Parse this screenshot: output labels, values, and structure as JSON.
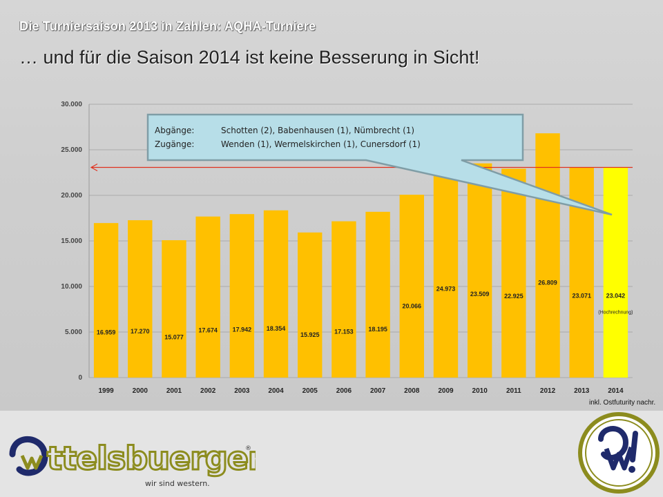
{
  "header": {
    "kicker": "Die Turniersaison 2013 in Zahlen: AQHA-Turniere",
    "headline": "… und für die Saison 2014 ist keine Besserung in Sicht!"
  },
  "callout": {
    "rows": [
      {
        "label": "Abgänge:",
        "text": "Schotten (2), Babenhausen (1), Nümbrecht (1)"
      },
      {
        "label": "Zugänge:",
        "text": "Wenden (1), Wermelskirchen (1), Cunersdorf (1)"
      }
    ]
  },
  "footnote": "inkl. Ostfuturity nachr.",
  "brand": {
    "wordmark": "ttelsbuerger",
    "tagline": "wir sind western.",
    "registered": "®"
  },
  "colors": {
    "bar": "#FFC000",
    "bar_highlight": "#FFFF00",
    "reference_line": "#E0301E",
    "callout_fill": "#B7DEE8",
    "callout_border": "#7F9DA6",
    "logo_blue": "#1F2A6B",
    "logo_olive": "#8C8C1E"
  },
  "chart_data": {
    "type": "bar",
    "categories": [
      "1999",
      "2000",
      "2001",
      "2002",
      "2003",
      "2004",
      "2005",
      "2006",
      "2007",
      "2008",
      "2009",
      "2010",
      "2011",
      "2012",
      "2013",
      "2014"
    ],
    "values": [
      16959,
      17270,
      15077,
      17674,
      17942,
      18354,
      15925,
      17153,
      18195,
      20066,
      24973,
      23509,
      22925,
      26809,
      23071,
      23042
    ],
    "value_labels": [
      "16.959",
      "17.270",
      "15.077",
      "17.674",
      "17.942",
      "18.354",
      "15.925",
      "17.153",
      "18.195",
      "20.066",
      "24.973",
      "23.509",
      "22.925",
      "26.809",
      "23.071",
      "23.042"
    ],
    "highlight_index": 15,
    "highlight_note": "(Hochrechnung)",
    "y_ticks": [
      0,
      5000,
      10000,
      15000,
      20000,
      25000,
      30000
    ],
    "y_tick_labels": [
      "0",
      "5.000",
      "10.000",
      "15.000",
      "20.000",
      "25.000",
      "30.000"
    ],
    "ylim": [
      0,
      30000
    ],
    "reference_line_value": 23071,
    "grid": true,
    "title": "",
    "xlabel": "",
    "ylabel": ""
  }
}
